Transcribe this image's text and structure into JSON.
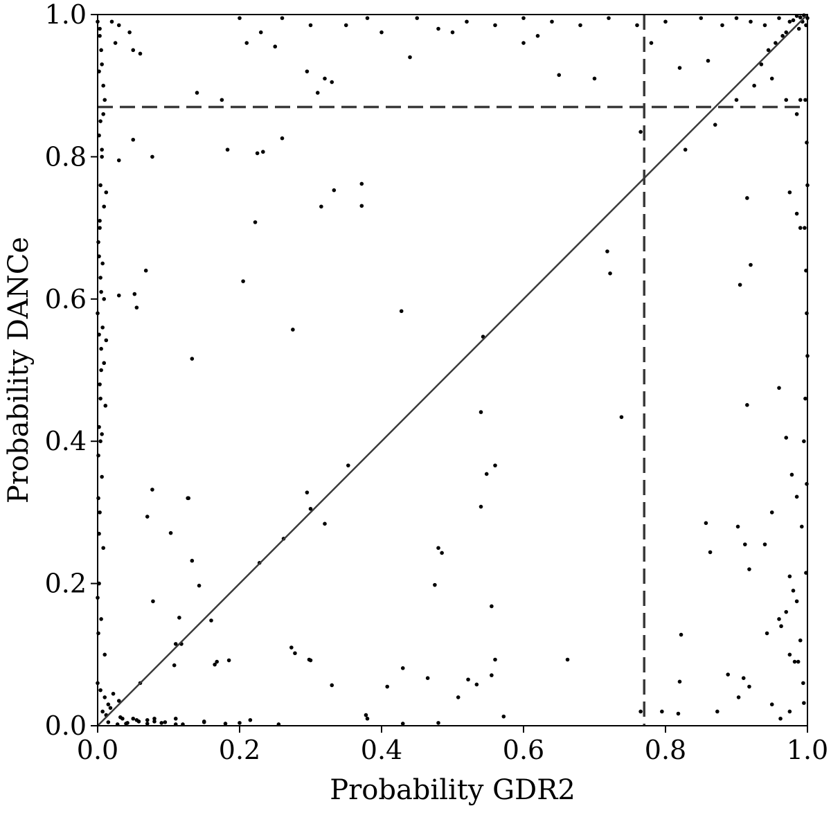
{
  "chart_data": {
    "type": "scatter",
    "xlabel": "Probability GDR2",
    "ylabel": "Probability DANCe",
    "xlim": [
      0.0,
      1.0
    ],
    "ylim": [
      0.0,
      1.0
    ],
    "xticks": [
      "0.0",
      "0.2",
      "0.4",
      "0.6",
      "0.8",
      "1.0"
    ],
    "yticks": [
      "0.0",
      "0.2",
      "0.4",
      "0.6",
      "0.8",
      "1.0"
    ],
    "grid": false,
    "reference_lines": {
      "diagonal": {
        "from": [
          0,
          0
        ],
        "to": [
          1,
          1
        ],
        "style": "solid"
      },
      "horizontal_threshold": {
        "y": 0.87,
        "style": "dashed"
      },
      "vertical_threshold": {
        "x": 0.77,
        "style": "dashed"
      }
    },
    "colors": {
      "points": "#000000",
      "lines": "#3a3a3a"
    },
    "series": [
      {
        "x": [
          0.0,
          0.003,
          0.005,
          0.002,
          0.008,
          0.01,
          0.004,
          0.006,
          0.012,
          0.003,
          0.007,
          0.009,
          0.002,
          0.005,
          0.011,
          0.004,
          0.006,
          0.003,
          0.008,
          0.002,
          0.005,
          0.01,
          0.004,
          0.007,
          0.003,
          0.006,
          0.002,
          0.009,
          0.004,
          0.005,
          0.02,
          0.03,
          0.045,
          0.025,
          0.06,
          0.05,
          0.035,
          0.015,
          0.04,
          0.055,
          0.028,
          0.012,
          0.018,
          0.032,
          0.042,
          0.058,
          0.07,
          0.08,
          0.095,
          0.11,
          0.015,
          0.022,
          0.01,
          0.03,
          0.05,
          0.07,
          0.09,
          0.12,
          0.15,
          0.18,
          0.2,
          0.23,
          0.25,
          0.26,
          0.3,
          0.32,
          0.35,
          0.38,
          0.4,
          0.45,
          0.48,
          0.52,
          0.56,
          0.6,
          0.64,
          0.68,
          0.72,
          0.76,
          0.8,
          0.85,
          0.88,
          0.9,
          0.92,
          0.94,
          0.96,
          0.975,
          0.985,
          0.99,
          0.995,
          1.0,
          0.998,
          0.993,
          0.988,
          0.98,
          0.97,
          0.965,
          0.955,
          0.945,
          0.935,
          0.925,
          0.14,
          0.175,
          0.21,
          0.295,
          0.31,
          0.33,
          0.44,
          0.5,
          0.6,
          0.62,
          0.65,
          0.7,
          0.78,
          0.82,
          0.86,
          0.9,
          0.95,
          0.97,
          0.99,
          0.985,
          0.008,
          0.006,
          0.004,
          0.003,
          0.002,
          0.005,
          0.007,
          0.009,
          0.004,
          0.006,
          0.03,
          0.05,
          0.077,
          0.183,
          0.225,
          0.233,
          0.26,
          0.333,
          0.372,
          0.372,
          0.315,
          0.222,
          0.205,
          0.275,
          0.133,
          0.068,
          0.052,
          0.055,
          0.03,
          0.012,
          0.428,
          0.543,
          0.718,
          0.722,
          0.905,
          0.915,
          0.92,
          0.765,
          0.828,
          0.87,
          0.975,
          0.985,
          0.99,
          0.54,
          0.548,
          0.56,
          0.738,
          0.915,
          0.96,
          0.97,
          0.978,
          0.985,
          0.992,
          0.998,
          0.98,
          0.353,
          0.3,
          0.295,
          0.32,
          0.228,
          0.127,
          0.077,
          0.07,
          0.54,
          0.975,
          0.95,
          0.94,
          0.902,
          0.912,
          0.918,
          0.863,
          0.857,
          0.975,
          0.963,
          0.99,
          0.985,
          0.97,
          0.96,
          0.982,
          0.994,
          0.262,
          0.3,
          0.378,
          0.48,
          0.485,
          0.475,
          0.555,
          0.822,
          0.943,
          0.987,
          0.103,
          0.078,
          0.11,
          0.143,
          0.133,
          0.118,
          0.108,
          0.16,
          0.168,
          0.185,
          0.115,
          0.128,
          0.165,
          0.273,
          0.278,
          0.298,
          0.33,
          0.408,
          0.43,
          0.465,
          0.508,
          0.522,
          0.534,
          0.555,
          0.56,
          0.572,
          0.662,
          0.765,
          0.795,
          0.818,
          0.82,
          0.873,
          0.888,
          0.903,
          0.91,
          0.918,
          0.95,
          0.962,
          0.975,
          0.995,
          0.06,
          0.08,
          0.11,
          0.15,
          0.2,
          0.215,
          0.255,
          0.38,
          0.43,
          0.48,
          0.0,
          0.001,
          0.002,
          0.001,
          0.0,
          0.002,
          0.001,
          0.003,
          0.0,
          0.001,
          0.997,
          0.999,
          1.0,
          0.996,
          0.998,
          0.999,
          1.0,
          0.997,
          0.995,
          0.999
        ],
        "y": [
          0.99,
          0.97,
          0.95,
          0.92,
          0.9,
          0.88,
          0.85,
          0.8,
          0.75,
          0.7,
          0.65,
          0.6,
          0.55,
          0.5,
          0.45,
          0.4,
          0.35,
          0.3,
          0.25,
          0.2,
          0.15,
          0.1,
          0.05,
          0.02,
          0.98,
          0.93,
          0.83,
          0.73,
          0.63,
          0.53,
          0.99,
          0.985,
          0.975,
          0.96,
          0.945,
          0.95,
          0.01,
          0.005,
          0.003,
          0.008,
          0.002,
          0.015,
          0.025,
          0.012,
          0.004,
          0.006,
          0.003,
          0.01,
          0.005,
          0.002,
          0.03,
          0.045,
          0.04,
          0.035,
          0.01,
          0.008,
          0.004,
          0.002,
          0.006,
          0.003,
          0.995,
          0.975,
          0.955,
          0.995,
          0.985,
          0.91,
          0.985,
          0.995,
          0.975,
          0.995,
          0.98,
          0.99,
          0.985,
          0.995,
          0.99,
          0.985,
          0.995,
          0.985,
          0.99,
          0.995,
          0.985,
          0.995,
          0.99,
          0.985,
          0.995,
          0.99,
          0.998,
          0.996,
          0.999,
          0.995,
          0.985,
          0.99,
          0.98,
          0.992,
          0.975,
          0.97,
          0.96,
          0.95,
          0.93,
          0.9,
          0.89,
          0.88,
          0.96,
          0.92,
          0.89,
          0.905,
          0.94,
          0.975,
          0.96,
          0.97,
          0.915,
          0.91,
          0.96,
          0.925,
          0.935,
          0.88,
          0.91,
          0.88,
          0.88,
          0.86,
          0.86,
          0.81,
          0.76,
          0.71,
          0.66,
          0.61,
          0.56,
          0.51,
          0.46,
          0.41,
          0.795,
          0.824,
          0.8,
          0.81,
          0.805,
          0.807,
          0.826,
          0.753,
          0.762,
          0.731,
          0.73,
          0.708,
          0.625,
          0.557,
          0.516,
          0.64,
          0.607,
          0.588,
          0.605,
          0.542,
          0.583,
          0.547,
          0.667,
          0.636,
          0.62,
          0.742,
          0.648,
          0.835,
          0.81,
          0.845,
          0.75,
          0.72,
          0.7,
          0.441,
          0.354,
          0.366,
          0.434,
          0.451,
          0.475,
          0.405,
          0.353,
          0.322,
          0.28,
          0.215,
          0.19,
          0.366,
          0.305,
          0.328,
          0.284,
          0.229,
          0.32,
          0.332,
          0.294,
          0.308,
          0.21,
          0.3,
          0.255,
          0.28,
          0.255,
          0.22,
          0.244,
          0.285,
          0.1,
          0.14,
          0.12,
          0.175,
          0.16,
          0.15,
          0.09,
          0.06,
          0.263,
          0.092,
          0.015,
          0.25,
          0.243,
          0.198,
          0.168,
          0.128,
          0.13,
          0.09,
          0.271,
          0.175,
          0.115,
          0.197,
          0.232,
          0.115,
          0.085,
          0.148,
          0.09,
          0.092,
          0.152,
          0.32,
          0.086,
          0.11,
          0.102,
          0.093,
          0.057,
          0.055,
          0.081,
          0.067,
          0.04,
          0.065,
          0.058,
          0.071,
          0.093,
          0.013,
          0.093,
          0.02,
          0.02,
          0.017,
          0.062,
          0.02,
          0.072,
          0.04,
          0.067,
          0.055,
          0.03,
          0.01,
          0.02,
          0.032,
          0.06,
          0.006,
          0.01,
          0.005,
          0.004,
          0.008,
          0.002,
          0.01,
          0.003,
          0.004,
          0.18,
          0.32,
          0.42,
          0.13,
          0.06,
          0.27,
          0.38,
          0.48,
          0.58,
          0.68,
          0.88,
          0.82,
          0.76,
          0.7,
          0.64,
          0.58,
          0.52,
          0.46,
          0.4,
          0.34
        ]
      }
    ]
  }
}
